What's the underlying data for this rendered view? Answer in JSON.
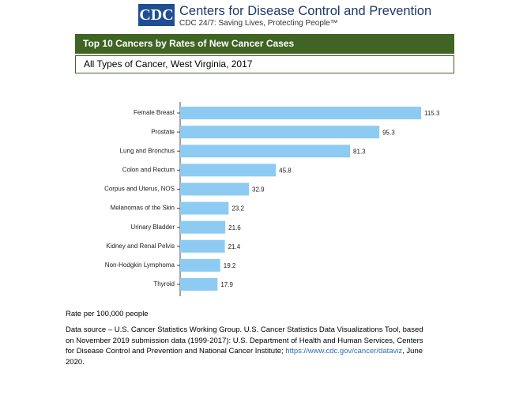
{
  "header": {
    "logo": "CDC",
    "org": "Centers for Disease Control and Prevention",
    "tagline": "CDC 24/7: Saving Lives, Protecting People™"
  },
  "chart_data": {
    "type": "bar",
    "orientation": "horizontal",
    "title": "Top 10 Cancers by Rates of New Cancer Cases",
    "subtitle": "All Types of Cancer, West Virginia, 2017",
    "categories": [
      "Female Breast",
      "Prostate",
      "Lung and Bronchus",
      "Colon and Rectum",
      "Corpus and Uterus, NOS",
      "Melanomas of the Skin",
      "Urinary Bladder",
      "Kidney and Renal Pelvis",
      "Non-Hodgkin Lymphoma",
      "Thyroid"
    ],
    "values": [
      115.3,
      95.3,
      81.3,
      45.8,
      32.9,
      23.2,
      21.6,
      21.4,
      19.2,
      17.9
    ],
    "color": "#8dcbf3",
    "x_label": "Rate per 100,000 people"
  },
  "source": {
    "text": "Data source – U.S. Cancer Statistics Working Group. U.S. Cancer Statistics Data Visualizations Tool, based on November 2019 submission data (1999-2017): U.S. Department of Health and Human Services, Centers for Disease Control and Prevention and National Cancer Institute;",
    "link": "https://www.cdc.gov/cancer/dataviz",
    "date": ", June 2020."
  }
}
